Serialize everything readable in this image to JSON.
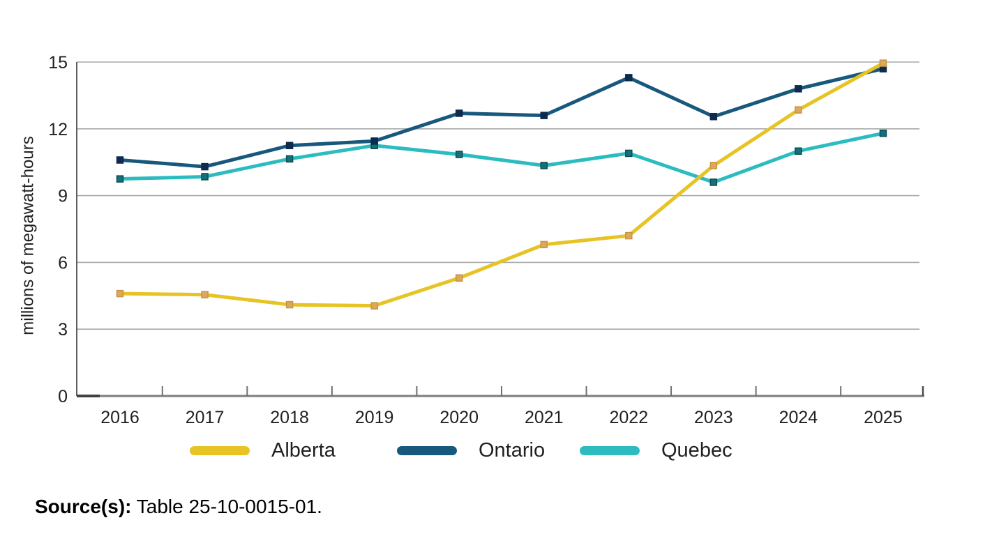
{
  "figure": {
    "source_label": "Source(s):",
    "source_text": "Table 25-10-0015-01."
  },
  "chart_data": {
    "type": "line",
    "title": "",
    "xlabel": "",
    "ylabel": "millions of megawatt-hours",
    "categories": [
      "2016",
      "2017",
      "2018",
      "2019",
      "2020",
      "2021",
      "2022",
      "2023",
      "2024",
      "2025"
    ],
    "series": [
      {
        "name": "Alberta",
        "color": "#E7C324",
        "marker_fill": "#DCA75F",
        "marker_stroke": "#C6953F",
        "values": [
          4.6,
          4.55,
          4.1,
          4.05,
          5.3,
          6.8,
          7.2,
          10.35,
          12.85,
          14.95
        ]
      },
      {
        "name": "Ontario",
        "color": "#17587C",
        "marker_fill": "#0F2A4E",
        "marker_stroke": "#0F2A4E",
        "values": [
          10.6,
          10.3,
          11.25,
          11.45,
          12.7,
          12.6,
          14.3,
          12.55,
          13.8,
          14.7
        ]
      },
      {
        "name": "Quebec",
        "color": "#2CBCC0",
        "marker_fill": "#147179",
        "marker_stroke": "#0A4C52",
        "values": [
          9.75,
          9.85,
          10.65,
          11.25,
          10.85,
          10.35,
          10.9,
          9.6,
          11.0,
          11.8
        ]
      }
    ],
    "ylim": [
      0,
      15
    ],
    "yticks": [
      0,
      3,
      6,
      9,
      12,
      15
    ],
    "grid": "horizontal",
    "legend_position": "bottom",
    "grid_color": "#A7A9AC",
    "axis_color": "#7B7D7F",
    "axis_dark_color": "#414244"
  }
}
